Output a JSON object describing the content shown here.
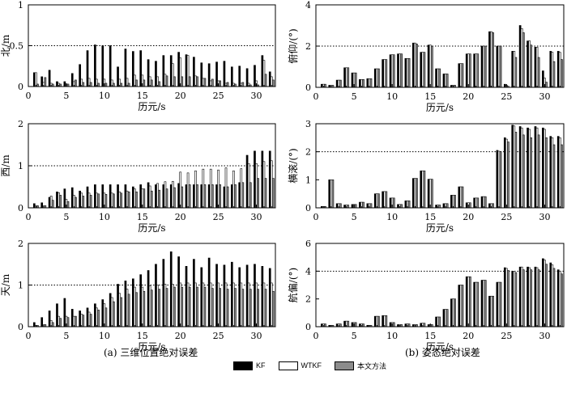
{
  "legend": {
    "items": [
      {
        "name": "KF",
        "color": "#000000"
      },
      {
        "name": "WTKF",
        "color": "#ffffff"
      },
      {
        "name": "本文方法",
        "color": "#8c8c8c"
      }
    ]
  },
  "captions": {
    "left": "(a) 三维位置绝对误差",
    "right": "(b) 姿态绝对误差"
  },
  "chart_data": [
    {
      "type": "bar",
      "panel": "a-north",
      "xlabel": "历元/s",
      "ylabel": "北/m",
      "xlim": [
        0,
        32.5
      ],
      "ylim": [
        0,
        1
      ],
      "yticks": [
        "0",
        "0.5",
        "1"
      ],
      "xticks": [
        "0",
        "5",
        "10",
        "15",
        "20",
        "25",
        "30"
      ],
      "reference_line": 0.5,
      "x": [
        1,
        2,
        3,
        4,
        5,
        6,
        7,
        8,
        9,
        10,
        11,
        12,
        13,
        14,
        15,
        16,
        17,
        18,
        19,
        20,
        21,
        22,
        23,
        24,
        25,
        26,
        27,
        28,
        29,
        30,
        31,
        32
      ],
      "series": [
        {
          "name": "KF",
          "values": [
            0.17,
            0.12,
            0.2,
            0.06,
            0.06,
            0.16,
            0.27,
            0.44,
            0.51,
            0.5,
            0.5,
            0.24,
            0.46,
            0.43,
            0.44,
            0.33,
            0.31,
            0.38,
            0.38,
            0.42,
            0.39,
            0.36,
            0.29,
            0.28,
            0.3,
            0.31,
            0.24,
            0.25,
            0.22,
            0.26,
            0.38,
            0.18
          ]
        },
        {
          "name": "WTKF",
          "values": [
            0.17,
            0.05,
            0.04,
            0.04,
            0.03,
            0.06,
            0.09,
            0.1,
            0.09,
            0.09,
            0.08,
            0.09,
            0.1,
            0.14,
            0.14,
            0.12,
            0.12,
            0.15,
            0.28,
            0.35,
            0.38,
            0.13,
            0.1,
            0.07,
            0.07,
            0.04,
            0.04,
            0.04,
            0.04,
            0.07,
            0.32,
            0.12
          ]
        },
        {
          "name": "本文方法",
          "values": [
            0.03,
            0.11,
            0.03,
            0.03,
            0.03,
            0.08,
            0.05,
            0.05,
            0.04,
            0.04,
            0.04,
            0.04,
            0.04,
            0.08,
            0.08,
            0.08,
            0.06,
            0.13,
            0.12,
            0.12,
            0.12,
            0.12,
            0.1,
            0.09,
            0.07,
            0.05,
            0.03,
            0.05,
            0.02,
            0.02,
            0.15,
            0.08
          ]
        }
      ]
    },
    {
      "type": "bar",
      "panel": "a-west",
      "xlabel": "历元/s",
      "ylabel": "西/m",
      "xlim": [
        0,
        32.5
      ],
      "ylim": [
        0,
        2
      ],
      "yticks": [
        "0",
        "1",
        "2"
      ],
      "xticks": [
        "0",
        "5",
        "10",
        "15",
        "20",
        "25",
        "30"
      ],
      "reference_line": 1,
      "x": [
        1,
        2,
        3,
        4,
        5,
        6,
        7,
        8,
        9,
        10,
        11,
        12,
        13,
        14,
        15,
        16,
        17,
        18,
        19,
        20,
        21,
        22,
        23,
        24,
        25,
        26,
        27,
        28,
        29,
        30,
        31,
        32
      ],
      "series": [
        {
          "name": "KF",
          "values": [
            0.1,
            0.12,
            0.25,
            0.38,
            0.45,
            0.48,
            0.4,
            0.5,
            0.55,
            0.55,
            0.55,
            0.55,
            0.55,
            0.5,
            0.55,
            0.6,
            0.55,
            0.55,
            0.55,
            0.58,
            0.55,
            0.55,
            0.55,
            0.55,
            0.55,
            0.5,
            0.55,
            0.6,
            1.25,
            1.35,
            1.35,
            1.35
          ]
        },
        {
          "name": "WTKF",
          "values": [
            0.05,
            0.05,
            0.28,
            0.36,
            0.2,
            0.3,
            0.35,
            0.35,
            0.35,
            0.35,
            0.35,
            0.38,
            0.4,
            0.45,
            0.45,
            0.52,
            0.58,
            0.62,
            0.63,
            0.85,
            0.83,
            0.88,
            0.92,
            0.92,
            0.9,
            0.95,
            0.88,
            0.93,
            1.05,
            1.05,
            1.1,
            1.12
          ]
        },
        {
          "name": "本文方法",
          "values": [
            0.05,
            0.05,
            0.18,
            0.3,
            0.15,
            0.25,
            0.28,
            0.3,
            0.33,
            0.32,
            0.33,
            0.35,
            0.38,
            0.38,
            0.45,
            0.4,
            0.42,
            0.45,
            0.48,
            0.5,
            0.55,
            0.55,
            0.55,
            0.55,
            0.55,
            0.5,
            0.55,
            0.6,
            0.6,
            0.7,
            0.7,
            0.7
          ]
        }
      ]
    },
    {
      "type": "bar",
      "panel": "a-up",
      "xlabel": "历元/s",
      "ylabel": "天/m",
      "xlim": [
        0,
        32.5
      ],
      "ylim": [
        0,
        2
      ],
      "yticks": [
        "0",
        "1",
        "2"
      ],
      "xticks": [
        "0",
        "5",
        "10",
        "15",
        "20",
        "25",
        "30"
      ],
      "reference_line": 1,
      "x": [
        1,
        2,
        3,
        4,
        5,
        6,
        7,
        8,
        9,
        10,
        11,
        12,
        13,
        14,
        15,
        16,
        17,
        18,
        19,
        20,
        21,
        22,
        23,
        24,
        25,
        26,
        27,
        28,
        29,
        30,
        31,
        32
      ],
      "series": [
        {
          "name": "KF",
          "values": [
            0.1,
            0.22,
            0.38,
            0.55,
            0.68,
            0.42,
            0.38,
            0.45,
            0.55,
            0.65,
            0.8,
            1.02,
            1.1,
            1.15,
            1.25,
            1.35,
            1.5,
            1.62,
            1.8,
            1.68,
            1.45,
            1.62,
            1.42,
            1.65,
            1.5,
            1.48,
            1.55,
            1.42,
            1.48,
            1.5,
            1.45,
            1.4
          ]
        },
        {
          "name": "WTKF",
          "values": [
            0.03,
            0.05,
            0.15,
            0.25,
            0.25,
            0.25,
            0.3,
            0.35,
            0.45,
            0.55,
            0.7,
            0.8,
            0.9,
            0.95,
            0.95,
            0.98,
            1.0,
            1.02,
            1.02,
            1.05,
            1.05,
            1.05,
            1.05,
            1.05,
            1.05,
            1.05,
            1.05,
            1.05,
            1.05,
            1.05,
            1.05,
            1.05
          ]
        },
        {
          "name": "本文方法",
          "values": [
            0.03,
            0.05,
            0.1,
            0.2,
            0.22,
            0.25,
            0.28,
            0.3,
            0.4,
            0.45,
            0.6,
            0.7,
            0.78,
            0.82,
            0.85,
            0.88,
            0.9,
            0.92,
            0.95,
            0.95,
            0.95,
            0.95,
            0.95,
            0.92,
            0.92,
            0.9,
            0.92,
            0.9,
            0.9,
            0.9,
            0.9,
            0.85
          ]
        }
      ]
    },
    {
      "type": "bar",
      "panel": "b-pitch",
      "xlabel": "历元/s",
      "ylabel": "俯仰/(°)",
      "xlim": [
        0,
        32.5
      ],
      "ylim": [
        0,
        4
      ],
      "yticks": [
        "0",
        "2",
        "4"
      ],
      "xticks": [
        "0",
        "5",
        "10",
        "15",
        "20",
        "25",
        "30"
      ],
      "reference_line": 2,
      "x": [
        1,
        2,
        3,
        4,
        5,
        6,
        7,
        8,
        9,
        10,
        11,
        12,
        13,
        14,
        15,
        16,
        17,
        18,
        19,
        20,
        21,
        22,
        23,
        24,
        25,
        26,
        27,
        28,
        29,
        30,
        31,
        32
      ],
      "series": [
        {
          "name": "KF",
          "values": [
            0.15,
            0.1,
            0.35,
            0.95,
            0.7,
            0.38,
            0.42,
            0.9,
            1.35,
            1.58,
            1.62,
            1.4,
            2.15,
            1.7,
            2.05,
            0.9,
            0.65,
            0.1,
            1.15,
            1.62,
            1.62,
            2.0,
            2.7,
            2.0,
            0.15,
            1.75,
            3.0,
            2.25,
            1.95,
            0.8,
            1.75,
            1.75
          ]
        },
        {
          "name": "WTKF",
          "values": [
            0.15,
            0.1,
            0.35,
            0.95,
            0.7,
            0.38,
            0.42,
            0.9,
            1.35,
            1.58,
            1.62,
            1.4,
            2.15,
            1.7,
            2.05,
            0.9,
            0.65,
            0.1,
            1.15,
            1.62,
            1.62,
            2.0,
            2.7,
            2.0,
            0.1,
            1.75,
            2.85,
            2.25,
            1.95,
            0.45,
            1.7,
            1.7
          ]
        },
        {
          "name": "本文方法",
          "values": [
            0.15,
            0.1,
            0.35,
            0.95,
            0.7,
            0.38,
            0.42,
            0.9,
            1.35,
            1.58,
            1.62,
            1.4,
            2.1,
            1.7,
            2.0,
            0.9,
            0.65,
            0.1,
            1.15,
            1.62,
            1.62,
            2.0,
            2.65,
            2.0,
            0.05,
            1.45,
            2.65,
            2.05,
            1.45,
            0.25,
            1.25,
            1.35
          ]
        }
      ]
    },
    {
      "type": "bar",
      "panel": "b-roll",
      "xlabel": "历元/s",
      "ylabel": "横滚/(°)",
      "xlim": [
        0,
        32.5
      ],
      "ylim": [
        0,
        3
      ],
      "yticks": [
        "0",
        "1",
        "2",
        "3"
      ],
      "xticks": [
        "0",
        "5",
        "10",
        "15",
        "20",
        "25",
        "30"
      ],
      "reference_line": 2,
      "x": [
        1,
        2,
        3,
        4,
        5,
        6,
        7,
        8,
        9,
        10,
        11,
        12,
        13,
        14,
        15,
        16,
        17,
        18,
        19,
        20,
        21,
        22,
        23,
        24,
        25,
        26,
        27,
        28,
        29,
        30,
        31,
        32
      ],
      "series": [
        {
          "name": "KF",
          "values": [
            0.05,
            1.0,
            0.15,
            0.1,
            0.12,
            0.2,
            0.15,
            0.5,
            0.58,
            0.35,
            0.12,
            0.25,
            1.05,
            1.32,
            1.02,
            0.1,
            0.15,
            0.45,
            0.75,
            0.18,
            0.35,
            0.4,
            0.15,
            2.05,
            2.5,
            2.95,
            2.9,
            2.85,
            2.9,
            2.85,
            2.55,
            2.55
          ]
        },
        {
          "name": "WTKF",
          "values": [
            0.05,
            1.0,
            0.15,
            0.1,
            0.12,
            0.2,
            0.15,
            0.5,
            0.58,
            0.35,
            0.12,
            0.25,
            1.05,
            1.32,
            1.02,
            0.1,
            0.15,
            0.45,
            0.75,
            0.18,
            0.35,
            0.4,
            0.15,
            2.02,
            2.45,
            2.92,
            2.85,
            2.8,
            2.85,
            2.8,
            2.5,
            2.5
          ]
        },
        {
          "name": "本文方法",
          "values": [
            0.05,
            1.0,
            0.15,
            0.1,
            0.12,
            0.2,
            0.15,
            0.5,
            0.58,
            0.35,
            0.12,
            0.25,
            1.05,
            1.32,
            1.02,
            0.1,
            0.15,
            0.45,
            0.75,
            0.18,
            0.35,
            0.4,
            0.15,
            2.0,
            2.35,
            2.7,
            2.6,
            2.5,
            2.6,
            2.5,
            2.25,
            2.25
          ]
        }
      ]
    },
    {
      "type": "bar",
      "panel": "b-yaw",
      "xlabel": "历元/s",
      "ylabel": "航偏/(°)",
      "xlim": [
        0,
        32.5
      ],
      "ylim": [
        0,
        6
      ],
      "yticks": [
        "0",
        "2",
        "4",
        "6"
      ],
      "xticks": [
        "0",
        "5",
        "10",
        "15",
        "20",
        "25",
        "30"
      ],
      "reference_line": 4,
      "x": [
        1,
        2,
        3,
        4,
        5,
        6,
        7,
        8,
        9,
        10,
        11,
        12,
        13,
        14,
        15,
        16,
        17,
        18,
        19,
        20,
        21,
        22,
        23,
        24,
        25,
        26,
        27,
        28,
        29,
        30,
        31,
        32
      ],
      "series": [
        {
          "name": "KF",
          "values": [
            0.2,
            0.1,
            0.2,
            0.4,
            0.3,
            0.2,
            0.1,
            0.75,
            0.8,
            0.3,
            0.15,
            0.2,
            0.15,
            0.25,
            0.15,
            0.7,
            1.25,
            2.0,
            3.0,
            3.6,
            3.2,
            3.35,
            2.2,
            3.2,
            4.25,
            4.0,
            4.3,
            4.3,
            4.3,
            4.9,
            4.6,
            4.1
          ]
        },
        {
          "name": "WTKF",
          "values": [
            0.2,
            0.1,
            0.2,
            0.4,
            0.3,
            0.2,
            0.1,
            0.75,
            0.8,
            0.3,
            0.15,
            0.2,
            0.15,
            0.25,
            0.15,
            0.7,
            1.25,
            2.0,
            3.0,
            3.6,
            3.2,
            3.35,
            2.2,
            3.2,
            4.2,
            4.0,
            4.3,
            4.25,
            4.25,
            4.8,
            4.45,
            4.0
          ]
        },
        {
          "name": "本文方法",
          "values": [
            0.2,
            0.1,
            0.2,
            0.4,
            0.3,
            0.2,
            0.1,
            0.75,
            0.8,
            0.3,
            0.15,
            0.2,
            0.15,
            0.25,
            0.15,
            0.7,
            1.25,
            2.0,
            3.0,
            3.6,
            3.2,
            3.35,
            2.2,
            3.2,
            4.05,
            3.9,
            4.1,
            4.1,
            4.1,
            4.5,
            4.2,
            3.8
          ]
        }
      ]
    }
  ]
}
